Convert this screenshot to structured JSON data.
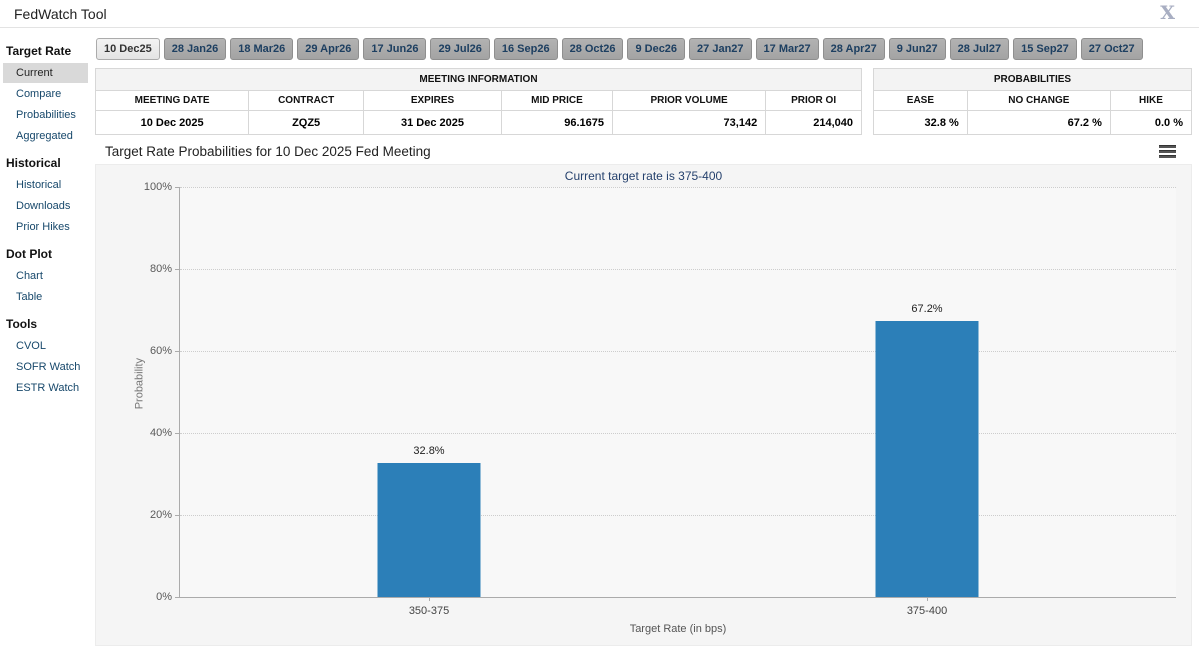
{
  "header": {
    "title": "FedWatch Tool"
  },
  "icons": {
    "close_glyph": "X"
  },
  "sidebar": {
    "sections": [
      {
        "heading": "Target Rate",
        "items": [
          {
            "label": "Current",
            "selected": true
          },
          {
            "label": "Compare",
            "selected": false
          },
          {
            "label": "Probabilities",
            "selected": false
          },
          {
            "label": "Aggregated",
            "selected": false
          }
        ]
      },
      {
        "heading": "Historical",
        "items": [
          {
            "label": "Historical",
            "selected": false
          },
          {
            "label": "Downloads",
            "selected": false
          },
          {
            "label": "Prior Hikes",
            "selected": false
          }
        ]
      },
      {
        "heading": "Dot Plot",
        "items": [
          {
            "label": "Chart",
            "selected": false
          },
          {
            "label": "Table",
            "selected": false
          }
        ]
      },
      {
        "heading": "Tools",
        "items": [
          {
            "label": "CVOL",
            "selected": false
          },
          {
            "label": "SOFR Watch",
            "selected": false
          },
          {
            "label": "ESTR Watch",
            "selected": false
          }
        ]
      }
    ]
  },
  "tabs": {
    "selected_index": 0,
    "items": [
      "10 Dec25",
      "28 Jan26",
      "18 Mar26",
      "29 Apr26",
      "17 Jun26",
      "29 Jul26",
      "16 Sep26",
      "28 Oct26",
      "9 Dec26",
      "27 Jan27",
      "17 Mar27",
      "28 Apr27",
      "9 Jun27",
      "28 Jul27",
      "15 Sep27",
      "27 Oct27"
    ]
  },
  "meeting_info": {
    "title": "MEETING INFORMATION",
    "columns": [
      "MEETING DATE",
      "CONTRACT",
      "EXPIRES",
      "MID PRICE",
      "PRIOR VOLUME",
      "PRIOR OI"
    ],
    "row": [
      "10 Dec 2025",
      "ZQZ5",
      "31 Dec 2025",
      "96.1675",
      "73,142",
      "214,040"
    ]
  },
  "probabilities_panel": {
    "title": "PROBABILITIES",
    "columns": [
      "EASE",
      "NO CHANGE",
      "HIKE"
    ],
    "row": [
      "32.8 %",
      "67.2 %",
      "0.0 %"
    ]
  },
  "chart": {
    "title": "Target Rate Probabilities for 10 Dec 2025 Fed Meeting"
  },
  "chart_data": {
    "type": "bar",
    "title": "Target Rate Probabilities for 10 Dec 2025 Fed Meeting",
    "subtitle": "Current target rate is 375-400",
    "categories": [
      "350-375",
      "375-400"
    ],
    "values": [
      32.8,
      67.2
    ],
    "value_labels": [
      "32.8%",
      "67.2%"
    ],
    "xlabel": "Target Rate (in bps)",
    "ylabel": "Probability",
    "ylim": [
      0,
      100
    ],
    "ytick_labels": [
      "0%",
      "20%",
      "40%",
      "60%",
      "80%",
      "100%"
    ],
    "grid": "horizontal-dotted",
    "legend": "none",
    "bar_color": "#2c7fb8"
  }
}
